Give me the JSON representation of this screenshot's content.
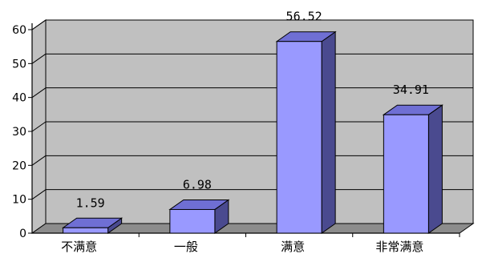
{
  "chart_data": {
    "type": "bar",
    "style": "3d",
    "categories": [
      "不满意",
      "一般",
      "满意",
      "非常满意"
    ],
    "values": [
      1.59,
      6.98,
      56.52,
      34.91
    ],
    "data_labels": [
      "1.59",
      "6.98",
      "56.52",
      "34.91"
    ],
    "y_ticks": [
      "0",
      "10",
      "20",
      "30",
      "40",
      "50",
      "60"
    ],
    "ylim": [
      0,
      60
    ],
    "grid": true,
    "legend": "none",
    "colors": {
      "wall": "#c0c0c0",
      "floor": "#8c8c8c",
      "bar_front": "#9999ff",
      "bar_top": "#6f6fd4",
      "bar_side": "#4a4a8f",
      "grid": "#000000"
    }
  }
}
